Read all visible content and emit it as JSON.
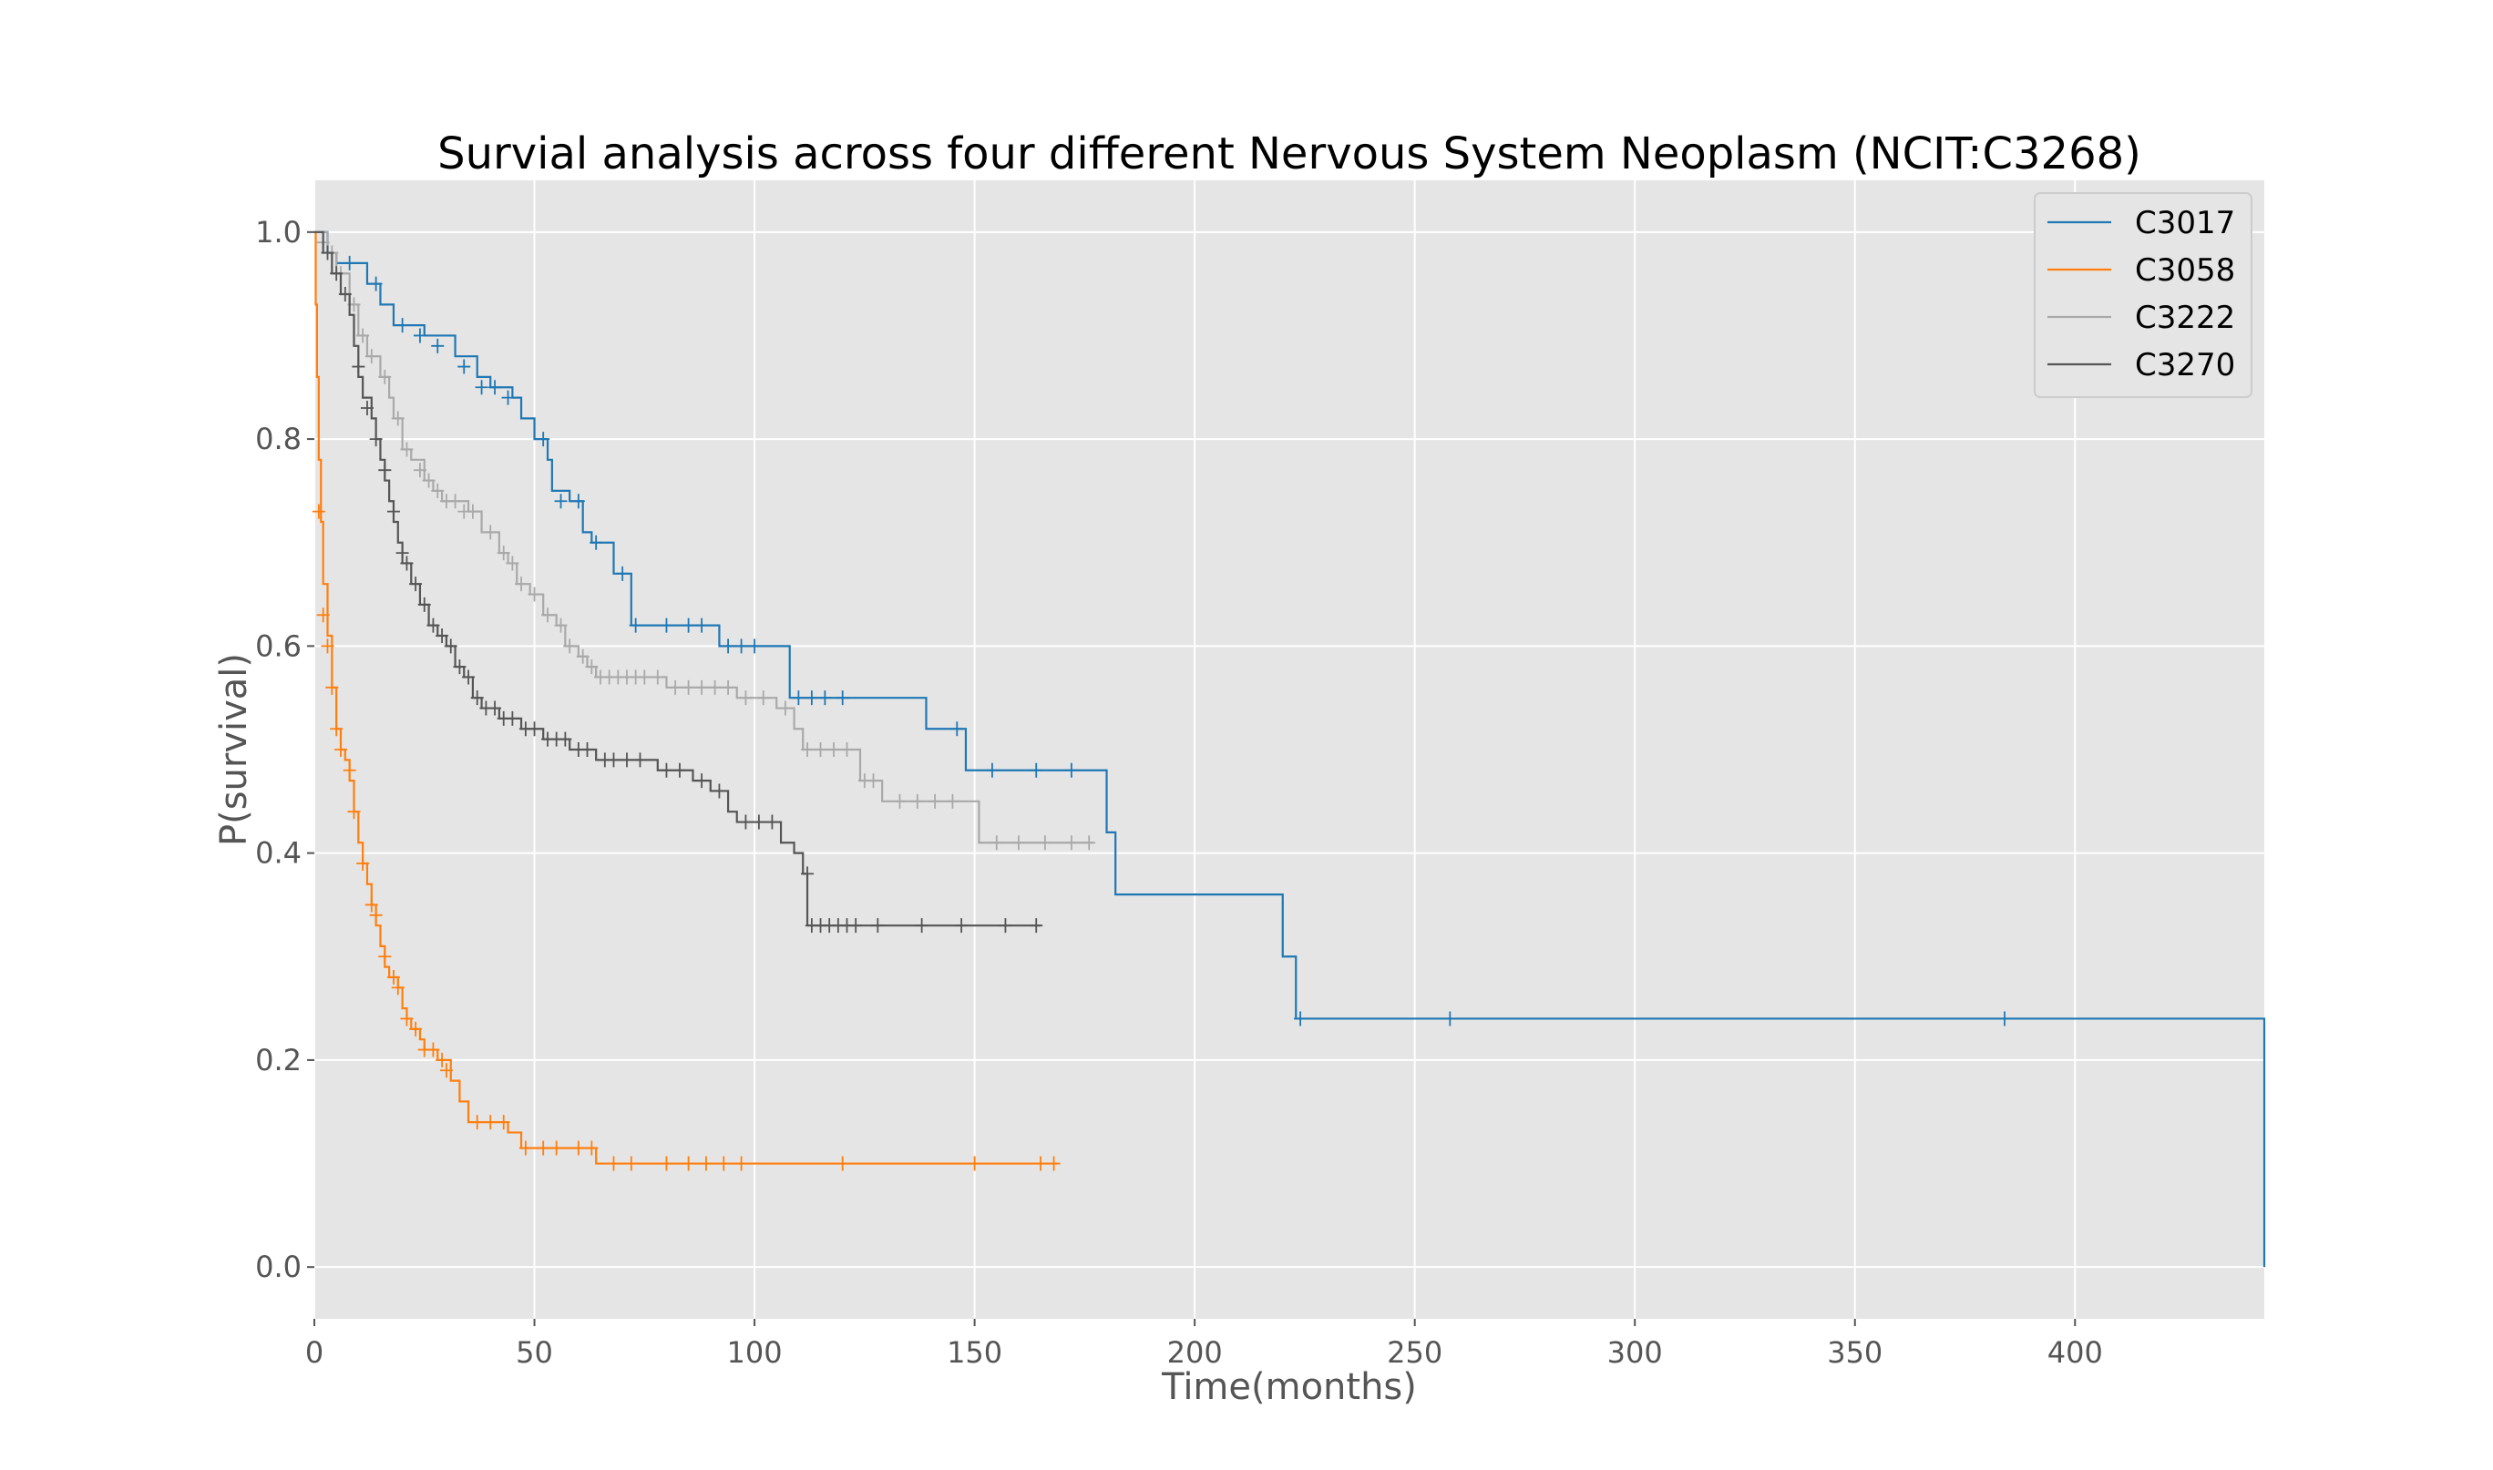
{
  "chart_data": {
    "type": "line",
    "title": "Survial analysis across four different Nervous System Neoplasm (NCIT:C3268)",
    "xlabel": "Time(months)",
    "ylabel": "P(survival)",
    "xlim": [
      0,
      443
    ],
    "ylim": [
      -0.05,
      1.05
    ],
    "xticks": [
      "0",
      "50",
      "100",
      "150",
      "200",
      "250",
      "300",
      "350",
      "400"
    ],
    "yticks": [
      "0.0",
      "0.2",
      "0.4",
      "0.6",
      "0.8",
      "1.0"
    ],
    "grid": true,
    "legend_position": "top-right",
    "series": [
      {
        "name": "C3017",
        "color": "#1f77b4",
        "steps": [
          [
            0,
            1.0
          ],
          [
            3,
            0.98
          ],
          [
            5,
            0.97
          ],
          [
            12,
            0.95
          ],
          [
            15,
            0.93
          ],
          [
            18,
            0.91
          ],
          [
            25,
            0.9
          ],
          [
            32,
            0.88
          ],
          [
            37,
            0.86
          ],
          [
            40,
            0.85
          ],
          [
            45,
            0.84
          ],
          [
            47,
            0.82
          ],
          [
            50,
            0.8
          ],
          [
            53,
            0.78
          ],
          [
            54,
            0.75
          ],
          [
            58,
            0.74
          ],
          [
            61,
            0.71
          ],
          [
            63,
            0.7
          ],
          [
            68,
            0.67
          ],
          [
            72,
            0.62
          ],
          [
            92,
            0.6
          ],
          [
            108,
            0.55
          ],
          [
            139,
            0.52
          ],
          [
            148,
            0.48
          ],
          [
            180,
            0.42
          ],
          [
            182,
            0.36
          ],
          [
            220,
            0.3
          ],
          [
            223,
            0.24
          ],
          [
            443,
            0.24
          ],
          [
            443,
            0.0
          ]
        ],
        "censored": [
          [
            8,
            0.97
          ],
          [
            14,
            0.95
          ],
          [
            20,
            0.91
          ],
          [
            24,
            0.9
          ],
          [
            28,
            0.89
          ],
          [
            34,
            0.87
          ],
          [
            38,
            0.85
          ],
          [
            41,
            0.85
          ],
          [
            44,
            0.84
          ],
          [
            52,
            0.8
          ],
          [
            56,
            0.74
          ],
          [
            60,
            0.74
          ],
          [
            64,
            0.7
          ],
          [
            70,
            0.67
          ],
          [
            73,
            0.62
          ],
          [
            80,
            0.62
          ],
          [
            85,
            0.62
          ],
          [
            88,
            0.62
          ],
          [
            94,
            0.6
          ],
          [
            97,
            0.6
          ],
          [
            100,
            0.6
          ],
          [
            110,
            0.55
          ],
          [
            113,
            0.55
          ],
          [
            116,
            0.55
          ],
          [
            120,
            0.55
          ],
          [
            146,
            0.52
          ],
          [
            154,
            0.48
          ],
          [
            164,
            0.48
          ],
          [
            172,
            0.48
          ],
          [
            224,
            0.24
          ],
          [
            258,
            0.24
          ],
          [
            384,
            0.24
          ]
        ]
      },
      {
        "name": "C3058",
        "color": "#ff7f0e",
        "steps": [
          [
            0,
            1.0
          ],
          [
            0.3,
            0.93
          ],
          [
            0.6,
            0.86
          ],
          [
            1,
            0.78
          ],
          [
            1.5,
            0.72
          ],
          [
            2,
            0.66
          ],
          [
            3,
            0.61
          ],
          [
            4,
            0.56
          ],
          [
            5,
            0.52
          ],
          [
            6,
            0.5
          ],
          [
            7,
            0.49
          ],
          [
            8,
            0.47
          ],
          [
            9,
            0.44
          ],
          [
            10,
            0.41
          ],
          [
            11,
            0.39
          ],
          [
            12,
            0.37
          ],
          [
            13,
            0.35
          ],
          [
            14,
            0.33
          ],
          [
            15,
            0.31
          ],
          [
            16,
            0.29
          ],
          [
            17,
            0.28
          ],
          [
            19,
            0.27
          ],
          [
            20,
            0.25
          ],
          [
            21,
            0.24
          ],
          [
            22,
            0.23
          ],
          [
            24,
            0.22
          ],
          [
            25,
            0.21
          ],
          [
            28,
            0.2
          ],
          [
            31,
            0.18
          ],
          [
            33,
            0.16
          ],
          [
            35,
            0.14
          ],
          [
            44,
            0.13
          ],
          [
            47,
            0.115
          ],
          [
            64,
            0.1
          ],
          [
            169,
            0.1
          ]
        ],
        "censored": [
          [
            1,
            0.73
          ],
          [
            2,
            0.63
          ],
          [
            3,
            0.6
          ],
          [
            4,
            0.56
          ],
          [
            5,
            0.52
          ],
          [
            6,
            0.5
          ],
          [
            8,
            0.48
          ],
          [
            9,
            0.44
          ],
          [
            11,
            0.39
          ],
          [
            13,
            0.35
          ],
          [
            14,
            0.34
          ],
          [
            16,
            0.3
          ],
          [
            18,
            0.28
          ],
          [
            19,
            0.27
          ],
          [
            21,
            0.24
          ],
          [
            23,
            0.23
          ],
          [
            25,
            0.21
          ],
          [
            27,
            0.21
          ],
          [
            29,
            0.2
          ],
          [
            30,
            0.19
          ],
          [
            37,
            0.14
          ],
          [
            40,
            0.14
          ],
          [
            43,
            0.14
          ],
          [
            48,
            0.115
          ],
          [
            52,
            0.115
          ],
          [
            55,
            0.115
          ],
          [
            60,
            0.115
          ],
          [
            63,
            0.115
          ],
          [
            68,
            0.1
          ],
          [
            72,
            0.1
          ],
          [
            80,
            0.1
          ],
          [
            85,
            0.1
          ],
          [
            89,
            0.1
          ],
          [
            93,
            0.1
          ],
          [
            97,
            0.1
          ],
          [
            120,
            0.1
          ],
          [
            150,
            0.1
          ],
          [
            165,
            0.1
          ],
          [
            168,
            0.1
          ]
        ]
      },
      {
        "name": "C3222",
        "color": "#a9a9a9",
        "steps": [
          [
            0,
            1.0
          ],
          [
            3,
            0.98
          ],
          [
            5,
            0.96
          ],
          [
            8,
            0.93
          ],
          [
            10,
            0.9
          ],
          [
            12,
            0.88
          ],
          [
            15,
            0.86
          ],
          [
            17,
            0.84
          ],
          [
            18,
            0.82
          ],
          [
            20,
            0.79
          ],
          [
            22,
            0.78
          ],
          [
            25,
            0.76
          ],
          [
            27,
            0.75
          ],
          [
            29,
            0.74
          ],
          [
            35,
            0.73
          ],
          [
            38,
            0.71
          ],
          [
            42,
            0.69
          ],
          [
            44,
            0.68
          ],
          [
            46,
            0.66
          ],
          [
            49,
            0.65
          ],
          [
            52,
            0.63
          ],
          [
            55,
            0.62
          ],
          [
            57,
            0.6
          ],
          [
            60,
            0.59
          ],
          [
            62,
            0.58
          ],
          [
            64,
            0.57
          ],
          [
            80,
            0.56
          ],
          [
            96,
            0.55
          ],
          [
            105,
            0.54
          ],
          [
            109,
            0.52
          ],
          [
            111,
            0.5
          ],
          [
            124,
            0.47
          ],
          [
            129,
            0.45
          ],
          [
            151,
            0.41
          ],
          [
            177,
            0.41
          ]
        ],
        "censored": [
          [
            2,
            0.99
          ],
          [
            4,
            0.98
          ],
          [
            6,
            0.96
          ],
          [
            9,
            0.93
          ],
          [
            11,
            0.9
          ],
          [
            13,
            0.88
          ],
          [
            16,
            0.86
          ],
          [
            19,
            0.82
          ],
          [
            21,
            0.79
          ],
          [
            24,
            0.77
          ],
          [
            26,
            0.76
          ],
          [
            28,
            0.75
          ],
          [
            30,
            0.74
          ],
          [
            32,
            0.74
          ],
          [
            34,
            0.73
          ],
          [
            36,
            0.73
          ],
          [
            40,
            0.71
          ],
          [
            43,
            0.69
          ],
          [
            45,
            0.68
          ],
          [
            47,
            0.66
          ],
          [
            50,
            0.65
          ],
          [
            53,
            0.63
          ],
          [
            56,
            0.62
          ],
          [
            58,
            0.6
          ],
          [
            61,
            0.59
          ],
          [
            63,
            0.58
          ],
          [
            65,
            0.57
          ],
          [
            67,
            0.57
          ],
          [
            69,
            0.57
          ],
          [
            71,
            0.57
          ],
          [
            73,
            0.57
          ],
          [
            75,
            0.57
          ],
          [
            78,
            0.57
          ],
          [
            82,
            0.56
          ],
          [
            85,
            0.56
          ],
          [
            88,
            0.56
          ],
          [
            91,
            0.56
          ],
          [
            94,
            0.56
          ],
          [
            98,
            0.55
          ],
          [
            102,
            0.55
          ],
          [
            107,
            0.54
          ],
          [
            112,
            0.5
          ],
          [
            115,
            0.5
          ],
          [
            118,
            0.5
          ],
          [
            121,
            0.5
          ],
          [
            125,
            0.47
          ],
          [
            127,
            0.47
          ],
          [
            133,
            0.45
          ],
          [
            137,
            0.45
          ],
          [
            141,
            0.45
          ],
          [
            145,
            0.45
          ],
          [
            155,
            0.41
          ],
          [
            160,
            0.41
          ],
          [
            166,
            0.41
          ],
          [
            172,
            0.41
          ],
          [
            176,
            0.41
          ]
        ]
      },
      {
        "name": "C3270",
        "color": "#555555",
        "steps": [
          [
            0,
            1.0
          ],
          [
            2,
            0.98
          ],
          [
            4,
            0.96
          ],
          [
            6,
            0.94
          ],
          [
            8,
            0.92
          ],
          [
            9,
            0.89
          ],
          [
            10,
            0.86
          ],
          [
            11,
            0.84
          ],
          [
            13,
            0.82
          ],
          [
            14,
            0.8
          ],
          [
            15,
            0.78
          ],
          [
            16,
            0.76
          ],
          [
            17,
            0.74
          ],
          [
            18,
            0.72
          ],
          [
            19,
            0.7
          ],
          [
            20,
            0.68
          ],
          [
            22,
            0.66
          ],
          [
            24,
            0.64
          ],
          [
            26,
            0.62
          ],
          [
            28,
            0.61
          ],
          [
            30,
            0.6
          ],
          [
            32,
            0.58
          ],
          [
            34,
            0.57
          ],
          [
            36,
            0.55
          ],
          [
            38,
            0.54
          ],
          [
            42,
            0.53
          ],
          [
            47,
            0.52
          ],
          [
            52,
            0.51
          ],
          [
            58,
            0.5
          ],
          [
            64,
            0.49
          ],
          [
            78,
            0.48
          ],
          [
            86,
            0.47
          ],
          [
            90,
            0.46
          ],
          [
            94,
            0.44
          ],
          [
            96,
            0.43
          ],
          [
            106,
            0.41
          ],
          [
            109,
            0.4
          ],
          [
            111,
            0.38
          ],
          [
            112,
            0.33
          ],
          [
            165,
            0.33
          ]
        ],
        "censored": [
          [
            3,
            0.98
          ],
          [
            5,
            0.96
          ],
          [
            7,
            0.94
          ],
          [
            10,
            0.87
          ],
          [
            12,
            0.83
          ],
          [
            14,
            0.8
          ],
          [
            16,
            0.77
          ],
          [
            18,
            0.73
          ],
          [
            20,
            0.69
          ],
          [
            21,
            0.68
          ],
          [
            23,
            0.66
          ],
          [
            25,
            0.64
          ],
          [
            27,
            0.62
          ],
          [
            29,
            0.61
          ],
          [
            31,
            0.6
          ],
          [
            33,
            0.58
          ],
          [
            35,
            0.57
          ],
          [
            37,
            0.55
          ],
          [
            39,
            0.54
          ],
          [
            41,
            0.54
          ],
          [
            43,
            0.53
          ],
          [
            45,
            0.53
          ],
          [
            48,
            0.52
          ],
          [
            50,
            0.52
          ],
          [
            53,
            0.51
          ],
          [
            55,
            0.51
          ],
          [
            57,
            0.51
          ],
          [
            60,
            0.5
          ],
          [
            62,
            0.5
          ],
          [
            66,
            0.49
          ],
          [
            68,
            0.49
          ],
          [
            71,
            0.49
          ],
          [
            74,
            0.49
          ],
          [
            80,
            0.48
          ],
          [
            83,
            0.48
          ],
          [
            88,
            0.47
          ],
          [
            92,
            0.46
          ],
          [
            98,
            0.43
          ],
          [
            101,
            0.43
          ],
          [
            104,
            0.43
          ],
          [
            112,
            0.38
          ],
          [
            113,
            0.33
          ],
          [
            115,
            0.33
          ],
          [
            117,
            0.33
          ],
          [
            119,
            0.33
          ],
          [
            121,
            0.33
          ],
          [
            123,
            0.33
          ],
          [
            128,
            0.33
          ],
          [
            138,
            0.33
          ],
          [
            147,
            0.33
          ],
          [
            157,
            0.33
          ],
          [
            164,
            0.33
          ]
        ]
      }
    ]
  }
}
